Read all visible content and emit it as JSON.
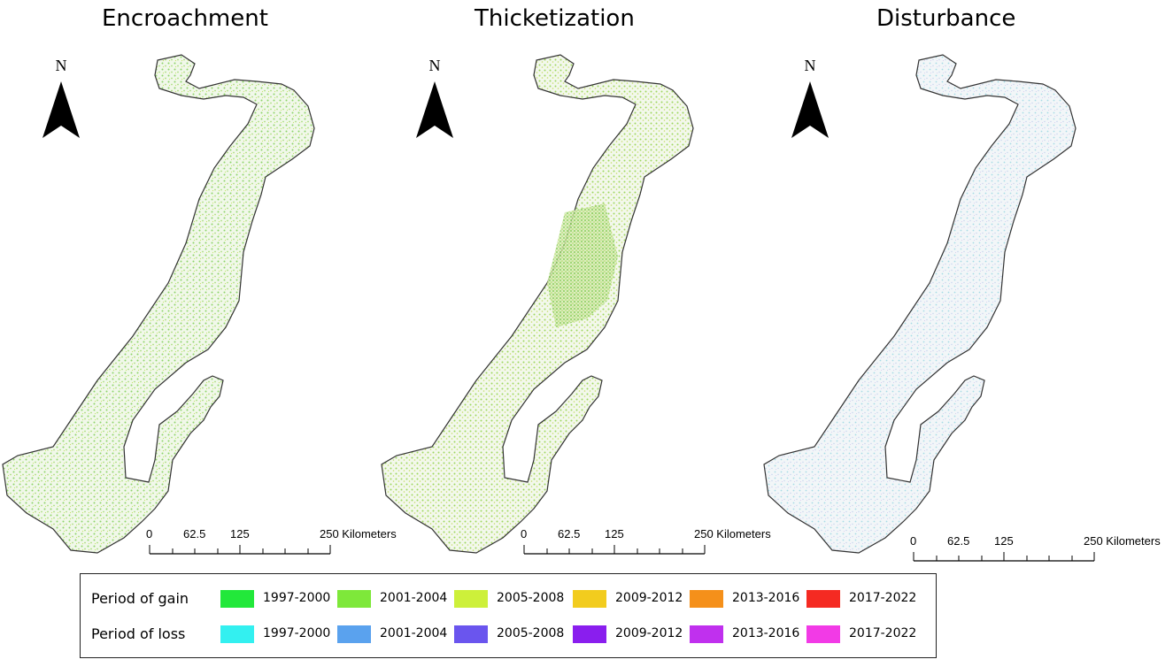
{
  "panels": [
    {
      "title": "Encroachment",
      "north_label": "N",
      "fill": "green-speckle"
    },
    {
      "title": "Thicketization",
      "north_label": "N",
      "fill": "green-dense"
    },
    {
      "title": "Disturbance",
      "north_label": "N",
      "fill": "cyan-speckle"
    }
  ],
  "scalebar": {
    "ticks": [
      "0",
      "62.5",
      "125",
      "250 Kilometers"
    ]
  },
  "legend": {
    "gain": {
      "label": "Period of gain",
      "items": [
        {
          "label": "1997-2000",
          "color": "#22e83a"
        },
        {
          "label": "2001-2004",
          "color": "#7ee83a"
        },
        {
          "label": "2005-2008",
          "color": "#cdf03a"
        },
        {
          "label": "2009-2012",
          "color": "#f2cc1e"
        },
        {
          "label": "2013-2016",
          "color": "#f5901a"
        },
        {
          "label": "2017-2022",
          "color": "#f52a22"
        }
      ]
    },
    "loss": {
      "label": "Period of loss",
      "items": [
        {
          "label": "1997-2000",
          "color": "#33f0f0"
        },
        {
          "label": "2001-2004",
          "color": "#5aa2ee"
        },
        {
          "label": "2005-2008",
          "color": "#6a55ee"
        },
        {
          "label": "2009-2012",
          "color": "#8a1eee"
        },
        {
          "label": "2013-2016",
          "color": "#c030ee"
        },
        {
          "label": "2017-2022",
          "color": "#f23ae6"
        }
      ]
    }
  }
}
